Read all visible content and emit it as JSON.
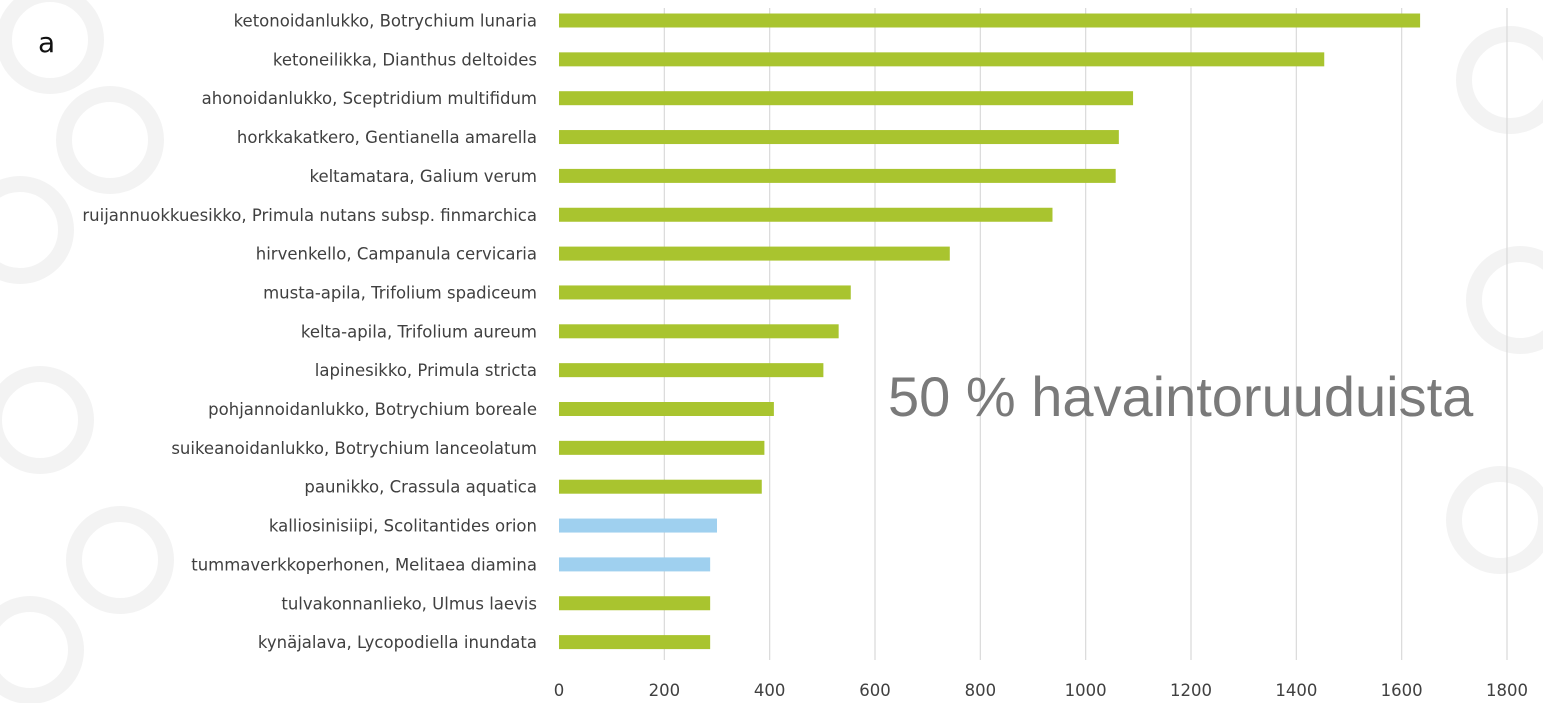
{
  "panel_label": "a",
  "annotation": "50 % havaintoruuduista",
  "colors": {
    "plant": "#a9c42f",
    "butterfly": "#9fd0ef",
    "grid": "#d9d9d9",
    "text": "#404040",
    "annotation": "#7a7a7a"
  },
  "chart_data": {
    "type": "bar",
    "orientation": "horizontal",
    "title": "",
    "xlabel": "",
    "ylabel": "",
    "xlim": [
      0,
      1800
    ],
    "xticks": [
      0,
      200,
      400,
      600,
      800,
      1000,
      1200,
      1400,
      1600,
      1800
    ],
    "grid": "vertical",
    "legend": "none",
    "categories": [
      "ketonoidanlukko, Botrychium lunaria",
      "ketoneilikka, Dianthus deltoides",
      "ahonoidanlukko, Sceptridium multifidum",
      "horkkakatkero, Gentianella amarella",
      "keltamatara, Galium verum",
      "ruijannuokkuesikko, Primula nutans subsp. finmarchica",
      "hirvenkello, Campanula cervicaria",
      "musta-apila, Trifolium spadiceum",
      "kelta-apila, Trifolium aureum",
      "lapinesikko, Primula stricta",
      "pohjannoidanlukko, Botrychium boreale",
      "suikeanoidanlukko, Botrychium lanceolatum",
      "paunikko, Crassula aquatica",
      "kalliosinisiipi, Scolitantides orion",
      "tummaverkkoperhonen, Melitaea diamina",
      "tulvakonnanlieko, Ulmus laevis",
      "kynäjalava, Lycopodiella inundata"
    ],
    "values": [
      1635,
      1453,
      1090,
      1063,
      1057,
      937,
      742,
      554,
      531,
      502,
      408,
      390,
      385,
      300,
      287,
      287,
      287
    ],
    "bar_groups": [
      "plant",
      "plant",
      "plant",
      "plant",
      "plant",
      "plant",
      "plant",
      "plant",
      "plant",
      "plant",
      "plant",
      "plant",
      "plant",
      "butterfly",
      "butterfly",
      "plant",
      "plant"
    ]
  }
}
